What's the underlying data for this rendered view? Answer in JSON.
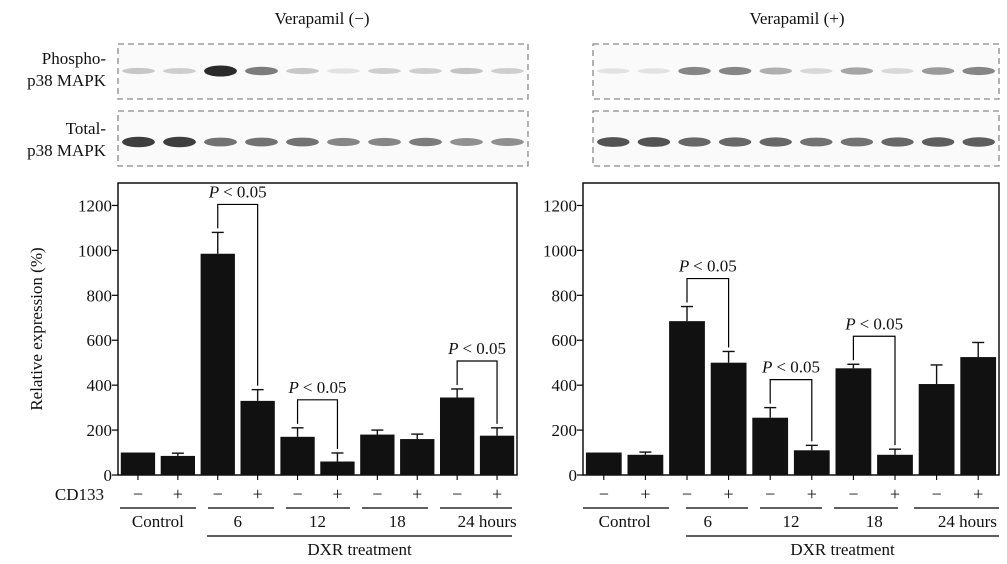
{
  "figure": {
    "blot_labels": {
      "phospho": [
        "Phospho-",
        "p38 MAPK"
      ],
      "total": [
        "Total-",
        "p38 MAPK"
      ]
    },
    "cd133_label": "CD133",
    "cd133_signs": [
      "−",
      "+",
      "−",
      "+",
      "−",
      "+",
      "−",
      "+",
      "−",
      "+"
    ],
    "group_labels": [
      "Control",
      "6",
      "12",
      "18",
      "24 hours"
    ],
    "treatment_label": "DXR treatment",
    "sig_prefix": "P",
    "sig_text": "< 0.05"
  },
  "chart_data": [
    {
      "type": "bar",
      "title": "Verapamil (−)",
      "ylabel": "Relative expression (%)",
      "ylim": [
        0,
        1300
      ],
      "yticks": [
        0,
        200,
        400,
        600,
        800,
        1000,
        1200
      ],
      "categories": [
        "Control −",
        "Control +",
        "6 −",
        "6 +",
        "12 −",
        "12 +",
        "18 −",
        "18 +",
        "24 hours −",
        "24 hours +"
      ],
      "values": [
        100,
        85,
        985,
        330,
        170,
        60,
        180,
        160,
        345,
        175
      ],
      "errors": [
        0,
        12,
        95,
        50,
        40,
        38,
        20,
        22,
        38,
        35
      ],
      "blots": {
        "phospho": [
          0.18,
          0.15,
          0.95,
          0.55,
          0.18,
          0.05,
          0.15,
          0.15,
          0.2,
          0.15
        ],
        "total": [
          0.85,
          0.85,
          0.6,
          0.6,
          0.6,
          0.5,
          0.5,
          0.55,
          0.45,
          0.45
        ]
      },
      "comparisons": [
        {
          "bars": [
            2,
            3
          ],
          "label": "P < 0.05"
        },
        {
          "bars": [
            4,
            5
          ],
          "label": "P < 0.05"
        },
        {
          "bars": [
            8,
            9
          ],
          "label": "P < 0.05"
        }
      ]
    },
    {
      "type": "bar",
      "title": "Verapamil (+)",
      "ylabel": "",
      "ylim": [
        0,
        1300
      ],
      "yticks": [
        0,
        200,
        400,
        600,
        800,
        1000,
        1200
      ],
      "categories": [
        "Control −",
        "Control +",
        "6 −",
        "6 +",
        "12 −",
        "12 +",
        "18 −",
        "18 +",
        "24 hours −",
        "24 hours +"
      ],
      "values": [
        100,
        90,
        685,
        500,
        255,
        110,
        475,
        90,
        405,
        525
      ],
      "errors": [
        0,
        12,
        65,
        50,
        45,
        22,
        18,
        25,
        85,
        65
      ],
      "blots": {
        "phospho": [
          0.05,
          0.05,
          0.5,
          0.5,
          0.3,
          0.1,
          0.35,
          0.1,
          0.4,
          0.5
        ],
        "total": [
          0.75,
          0.75,
          0.65,
          0.65,
          0.65,
          0.6,
          0.6,
          0.65,
          0.7,
          0.7
        ]
      },
      "comparisons": [
        {
          "bars": [
            2,
            3
          ],
          "label": "P < 0.05"
        },
        {
          "bars": [
            4,
            5
          ],
          "label": "P < 0.05"
        },
        {
          "bars": [
            6,
            7
          ],
          "label": "P < 0.05"
        }
      ]
    }
  ]
}
